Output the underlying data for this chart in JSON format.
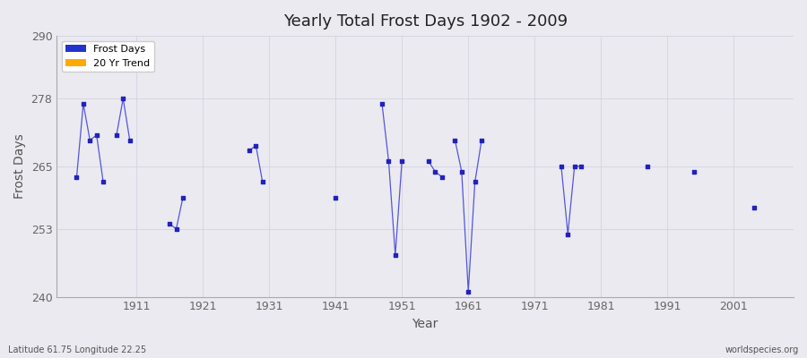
{
  "title": "Yearly Total Frost Days 1902 - 2009",
  "xlabel": "Year",
  "ylabel": "Frost Days",
  "bottom_left_label": "Latitude 61.75 Longitude 22.25",
  "bottom_right_label": "worldspecies.org",
  "ylim": [
    240,
    290
  ],
  "yticks": [
    240,
    253,
    265,
    278,
    290
  ],
  "xticks": [
    1911,
    1921,
    1931,
    1941,
    1951,
    1961,
    1971,
    1981,
    1991,
    2001
  ],
  "line_color": "#5555dd",
  "marker_color": "#2222bb",
  "bg_color": "#eaeaf0",
  "grid_color": "#d0d0e0",
  "legend_items": [
    {
      "label": "Frost Days",
      "color": "#2233cc",
      "marker": "s"
    },
    {
      "label": "20 Yr Trend",
      "color": "#ffaa00",
      "marker": "s"
    }
  ],
  "segments": [
    {
      "years": [
        1902,
        1903,
        1904,
        1905,
        1906
      ],
      "values": [
        263,
        277,
        270,
        271,
        262
      ]
    },
    {
      "years": [
        1908,
        1909,
        1910
      ],
      "values": [
        271,
        278,
        270
      ]
    },
    {
      "years": [
        1916,
        1917,
        1918
      ],
      "values": [
        254,
        253,
        259
      ]
    },
    {
      "years": [
        1928,
        1929,
        1930
      ],
      "values": [
        268,
        269,
        262
      ]
    },
    {
      "years": [
        1941
      ],
      "values": [
        259
      ]
    },
    {
      "years": [
        1948,
        1949,
        1950,
        1951
      ],
      "values": [
        277,
        266,
        248,
        266
      ]
    },
    {
      "years": [
        1955,
        1956,
        1957
      ],
      "values": [
        266,
        264,
        263
      ]
    },
    {
      "years": [
        1959,
        1960,
        1961,
        1962,
        1963
      ],
      "values": [
        270,
        264,
        241,
        262,
        270
      ]
    },
    {
      "years": [
        1975,
        1976,
        1977,
        1978
      ],
      "values": [
        265,
        252,
        265,
        265
      ]
    },
    {
      "years": [
        1988
      ],
      "values": [
        265
      ]
    },
    {
      "years": [
        1995
      ],
      "values": [
        264
      ]
    },
    {
      "years": [
        2004
      ],
      "values": [
        257
      ]
    }
  ]
}
